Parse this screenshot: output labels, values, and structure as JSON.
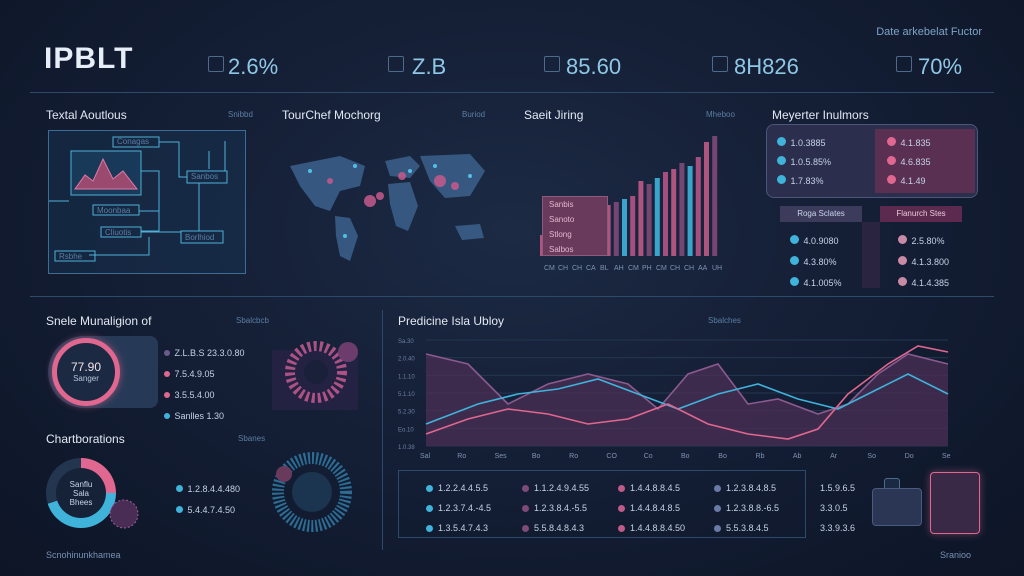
{
  "header": {
    "logo": "IPBLT",
    "kpis": [
      "2.6%",
      "Z.B",
      "85.60",
      "8H826",
      "70%"
    ],
    "note": "Date arkebelat Fuctor"
  },
  "panels": {
    "p1": {
      "title": "Textal Aoutlous",
      "tag": "Snibbd"
    },
    "p2": {
      "title": "TourChef Mochorg",
      "tag": "Buriod"
    },
    "p3": {
      "title": "Saeit Jiring",
      "tag": "Mheboo"
    },
    "p4": {
      "title": "Meyerter Inulmors",
      "tag": ""
    },
    "p5": {
      "title": "Snele Munaligion of",
      "tag": "Sbalcbcb"
    },
    "p6": {
      "title": "Chartborations",
      "tag": "Sbanes"
    },
    "p7": {
      "title": "Predicine Isla Ubloy",
      "tag": "Sbalches"
    }
  },
  "p1_labels": [
    "Conagas",
    "Sanbos",
    "Moonbaa",
    "Cliuotis",
    "Borlhiod",
    "Rsbhe"
  ],
  "bars": {
    "legend": [
      "Sanbis",
      "Sanoto",
      "Stlong",
      "Salbos"
    ],
    "x_labels": [
      "CM",
      "CH",
      "CH",
      "CA",
      "BL",
      "AH",
      "CM",
      "PH",
      "CM",
      "CH",
      "CH",
      "AA",
      "UH"
    ],
    "values": [
      7,
      8,
      10,
      14,
      11,
      15,
      12,
      16,
      17,
      18,
      19,
      20,
      25,
      24,
      26,
      28,
      29,
      31,
      30,
      33,
      38,
      40
    ]
  },
  "metrics_top": {
    "left": [
      "1.0.3885",
      "1.0.5.85%",
      "1.7.83%"
    ],
    "right": [
      "4.1.835",
      "4.6.835",
      "4.1.49"
    ]
  },
  "metrics_bottom": {
    "headers": [
      "Roga Sclates",
      "Flanurch Stes"
    ],
    "left": [
      "4.0.9080",
      "4.3.80%",
      "4.1.005%"
    ],
    "right": [
      "2.5.80%",
      "4.1.3.800",
      "4.1.4.385"
    ]
  },
  "gauge1": {
    "value": "77.90",
    "sub": "Sanger"
  },
  "list1": [
    "Z.L.B.S 23.3.0.80",
    "7.5.4.9.05",
    "3.5.5.4.00",
    "Sanlles 1.30"
  ],
  "gauge2": {
    "lines": [
      "Sanflu",
      "Sala",
      "Bhees"
    ]
  },
  "list2": [
    "1.2.8.4.4.480",
    "5.4.4.7.4.50"
  ],
  "line_chart": {
    "y_ticks": [
      "Sa.30",
      "2.0.40",
      "1.1.10",
      "5.1.10",
      "5.2.30",
      "Eo.10",
      "1.0.38"
    ],
    "x_ticks": [
      "Sal",
      "Ro",
      "Ses",
      "Bo",
      "Ro",
      "CO",
      "Co",
      "Bo",
      "Bo",
      "Rb",
      "Ab",
      "Ar",
      "So",
      "Do",
      "Se"
    ]
  },
  "table": [
    [
      "1.2.2.4.4.5.5",
      "1.1.2.4.9.4.55",
      "1.4.4.8.8.4.5",
      "1.2.3.8.4.8.5"
    ],
    [
      "1.2.3.7.4.-4.5",
      "1.2.3.8.4.-5.5",
      "1.4.4.8.4.8.5",
      "1.2.3.8.8.-6.5"
    ],
    [
      "1.3.5.4.7.4.3",
      "5.5.8.4.8.4.3",
      "1.4.4.8.8.4.50",
      "5.5.3.8.4.5"
    ]
  ],
  "side_values": [
    "1.5.9.6.5",
    "3.3.0.5",
    "3.3.9.3.6"
  ],
  "footer": {
    "left": "Scnohinunkhamea",
    "right": "Sranioo"
  },
  "colors": {
    "accent_pink": "#e0678f",
    "accent_cyan": "#3fb3da",
    "accent_purple": "#7b4d7a"
  }
}
